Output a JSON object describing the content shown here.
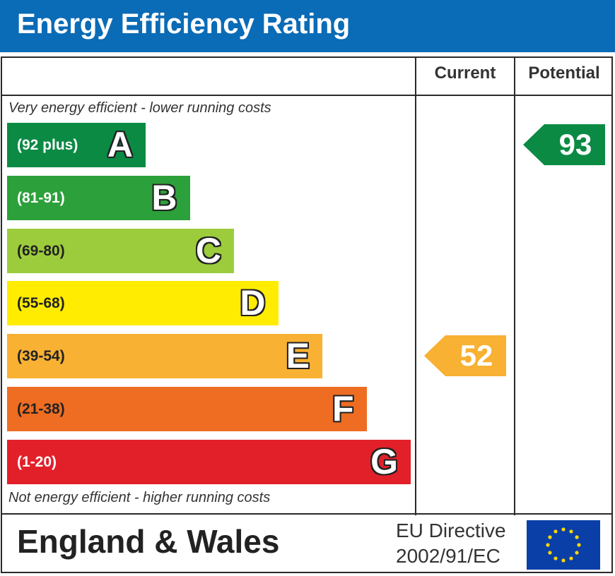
{
  "title": "Energy Efficiency Rating",
  "columns": {
    "current": "Current",
    "potential": "Potential"
  },
  "notes": {
    "top": "Very energy efficient - lower running costs",
    "bottom": "Not energy efficient - higher running costs"
  },
  "chart_data": {
    "type": "bar",
    "categories": [
      "A",
      "B",
      "C",
      "D",
      "E",
      "F",
      "G"
    ],
    "ranges": [
      "(92 plus)",
      "(81-91)",
      "(69-80)",
      "(55-68)",
      "(39-54)",
      "(21-38)",
      "(1-20)"
    ],
    "colors": [
      "#0b8a44",
      "#2ca03a",
      "#9ccc3c",
      "#ffec00",
      "#f8b133",
      "#ee6d23",
      "#e2202a"
    ],
    "range_text_colors": [
      "#ffffff",
      "#ffffff",
      "#222222",
      "#222222",
      "#222222",
      "#222222",
      "#ffffff"
    ],
    "current": {
      "value": 52,
      "band": "E",
      "color": "#f8b133"
    },
    "potential": {
      "value": 93,
      "band": "A",
      "color": "#0b8a44"
    }
  },
  "footer": {
    "region": "England & Wales",
    "directive_line1": "EU Directive",
    "directive_line2": "2002/91/EC"
  },
  "flag_colors": {
    "field": "#0a3fa8",
    "stars": "#ffd700"
  }
}
